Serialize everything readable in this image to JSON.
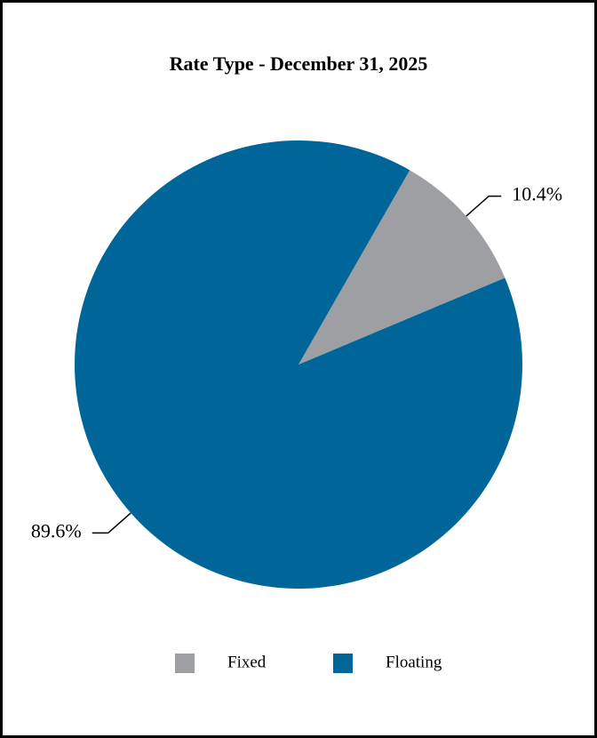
{
  "chart_data": {
    "type": "pie",
    "title": "Rate Type - December 31, 2025",
    "categories": [
      "Fixed",
      "Floating"
    ],
    "values": [
      10.4,
      89.6
    ],
    "value_labels": [
      "10.4%",
      "89.6%"
    ],
    "colors": [
      "#9d9fa2",
      "#006699"
    ],
    "legend": "bottom"
  }
}
